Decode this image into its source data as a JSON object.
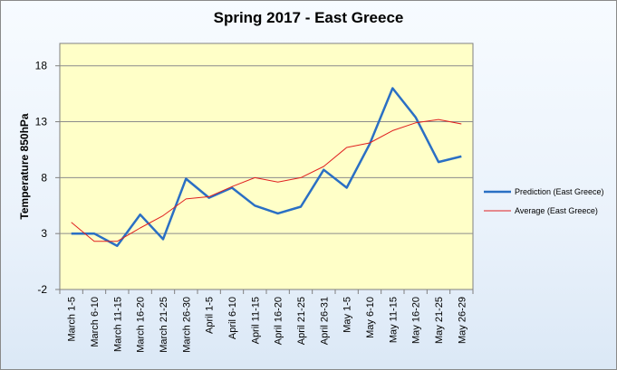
{
  "chart_data": {
    "type": "line",
    "title": "Spring 2017 - East Greece",
    "xlabel": "",
    "ylabel": "Temperature 850hPa",
    "ylim": [
      -2,
      20
    ],
    "yticks": [
      -2,
      3,
      8,
      13,
      18
    ],
    "grid": true,
    "legend_position": "right",
    "categories": [
      "March 1-5",
      "March 6-10",
      "March 11-15",
      "March 16-20",
      "March 21-25",
      "March 26-30",
      "April 1-5",
      "April 6-10",
      "April 11-15",
      "April 16-20",
      "April 21-25",
      "April 26-31",
      "May 1-5",
      "May 6-10",
      "May 11-15",
      "May 16-20",
      "May 21-25",
      "May 26-29"
    ],
    "series": [
      {
        "name": "Prediction (East Greece)",
        "color": "#2a6fc4",
        "values": [
          3.0,
          3.0,
          1.9,
          4.7,
          2.5,
          7.9,
          6.2,
          7.1,
          5.5,
          4.8,
          5.4,
          8.7,
          7.1,
          11.0,
          16.0,
          13.4,
          9.4,
          9.9
        ]
      },
      {
        "name": "Average (East Greece)",
        "color": "#e02020",
        "values": [
          4.0,
          2.3,
          2.3,
          3.5,
          4.6,
          6.1,
          6.3,
          7.2,
          8.0,
          7.6,
          8.0,
          9.0,
          10.7,
          11.1,
          12.2,
          12.9,
          13.2,
          12.8
        ]
      }
    ]
  }
}
